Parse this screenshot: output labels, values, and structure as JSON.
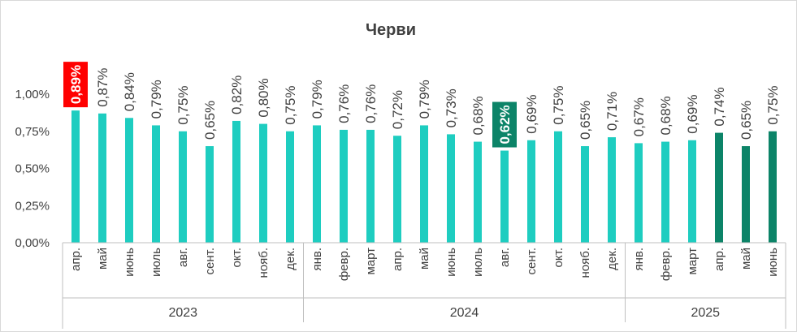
{
  "chart_data": {
    "type": "bar",
    "title": "Черви",
    "xlabel": "",
    "ylabel": "",
    "ylim": [
      0,
      1.0
    ],
    "yticks": [
      "0,00%",
      "0,25%",
      "0,50%",
      "0,75%",
      "1,00%"
    ],
    "grid": false,
    "legend": "none",
    "groups": [
      {
        "year": "2023",
        "months": [
          "апр.",
          "май",
          "июнь",
          "июль",
          "авг.",
          "сент.",
          "окт.",
          "нояб.",
          "дек."
        ]
      },
      {
        "year": "2024",
        "months": [
          "янв.",
          "февр.",
          "март",
          "апр.",
          "май",
          "июнь",
          "июль",
          "авг.",
          "сент.",
          "окт.",
          "нояб.",
          "дек."
        ]
      },
      {
        "year": "2025",
        "months": [
          "янв.",
          "февр.",
          "март",
          "апр.",
          "май",
          "июнь"
        ]
      }
    ],
    "values": [
      0.89,
      0.87,
      0.84,
      0.79,
      0.75,
      0.65,
      0.82,
      0.8,
      0.75,
      0.79,
      0.76,
      0.76,
      0.72,
      0.79,
      0.73,
      0.68,
      0.62,
      0.69,
      0.75,
      0.65,
      0.71,
      0.67,
      0.68,
      0.69,
      0.74,
      0.65,
      0.75
    ],
    "labels": [
      "0,89%",
      "0,87%",
      "0,84%",
      "0,79%",
      "0,75%",
      "0,65%",
      "0,82%",
      "0,80%",
      "0,75%",
      "0,79%",
      "0,76%",
      "0,76%",
      "0,72%",
      "0,79%",
      "0,73%",
      "0,68%",
      "0,62%",
      "0,69%",
      "0,75%",
      "0,65%",
      "0,71%",
      "0,67%",
      "0,68%",
      "0,69%",
      "0,74%",
      "0,65%",
      "0,75%"
    ],
    "colors": {
      "default": "#1ecdc0",
      "recent": "#0c8468",
      "max_highlight": "#ff0000",
      "min_highlight": "#0c8468"
    },
    "recent_indices": [
      24,
      25,
      26
    ],
    "max_index": 0,
    "min_index": 16
  }
}
